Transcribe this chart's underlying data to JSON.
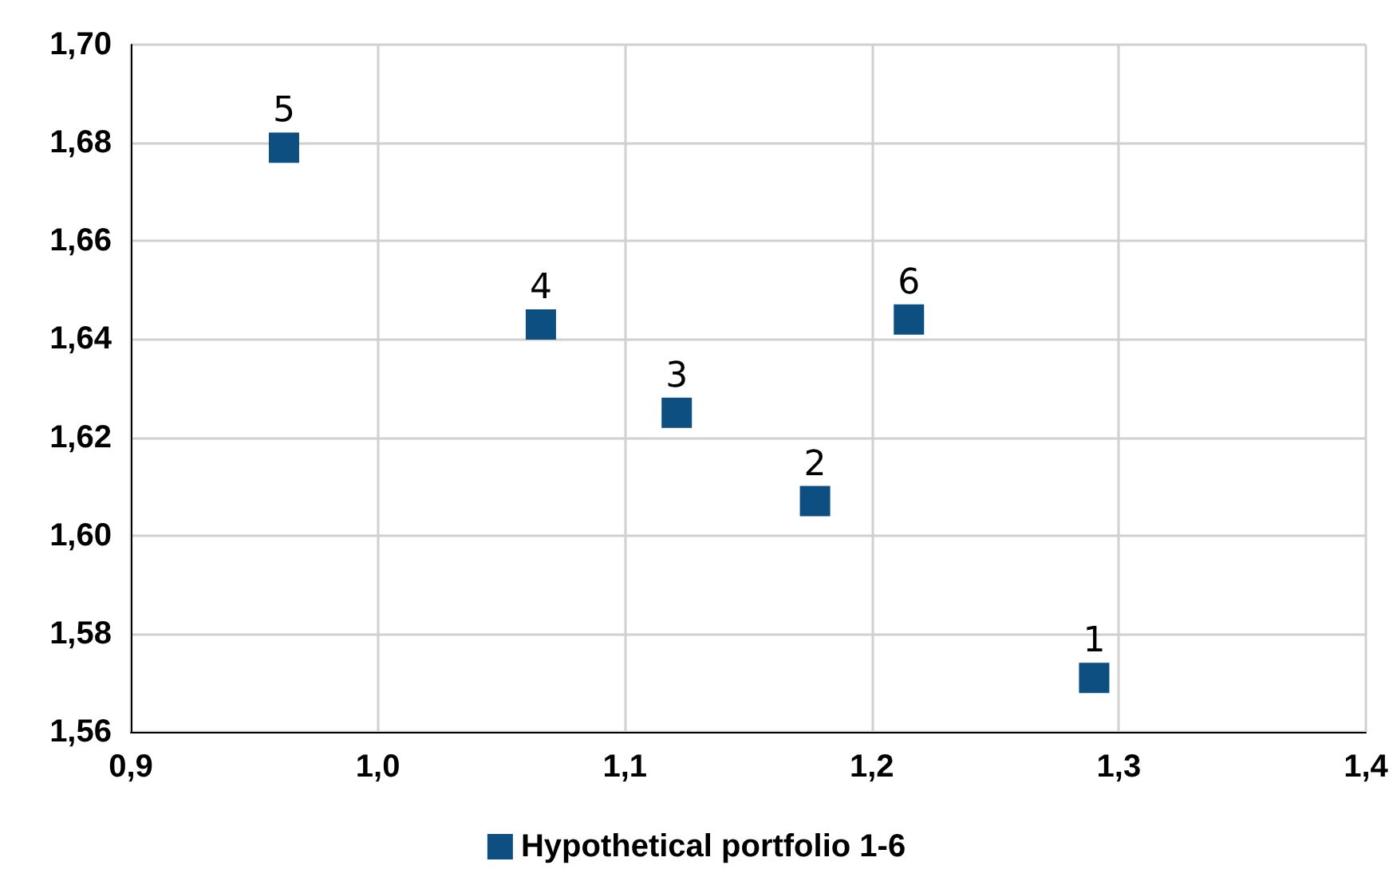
{
  "chart_data": {
    "type": "scatter",
    "series": [
      {
        "name": "Hypothetical portfolio 1-6",
        "color": "#0e4f82",
        "x": [
          1.29,
          1.177,
          1.121,
          1.066,
          0.962,
          1.215
        ],
        "values": [
          1.571,
          1.607,
          1.625,
          1.643,
          1.679,
          1.644
        ]
      }
    ],
    "annotations": [
      {
        "text": "1",
        "x": 1.29,
        "y": 1.571
      },
      {
        "text": "2",
        "x": 1.177,
        "y": 1.607
      },
      {
        "text": "3",
        "x": 1.121,
        "y": 1.625
      },
      {
        "text": "4",
        "x": 1.066,
        "y": 1.643
      },
      {
        "text": "5",
        "x": 0.962,
        "y": 1.679
      },
      {
        "text": "6",
        "x": 1.215,
        "y": 1.644
      }
    ],
    "xlim": [
      0.9,
      1.4
    ],
    "xticks": [
      {
        "value": 0.9,
        "label": "0,9"
      },
      {
        "value": 1.0,
        "label": "1,0"
      },
      {
        "value": 1.1,
        "label": "1,1"
      },
      {
        "value": 1.2,
        "label": "1,2"
      },
      {
        "value": 1.3,
        "label": "1,3"
      },
      {
        "value": 1.4,
        "label": "1,4"
      }
    ],
    "ylim": [
      1.56,
      1.7
    ],
    "yticks": [
      {
        "value": 1.56,
        "label": "1,56"
      },
      {
        "value": 1.58,
        "label": "1,58"
      },
      {
        "value": 1.6,
        "label": "1,60"
      },
      {
        "value": 1.62,
        "label": "1,62"
      },
      {
        "value": 1.64,
        "label": "1,64"
      },
      {
        "value": 1.66,
        "label": "1,66"
      },
      {
        "value": 1.68,
        "label": "1,68"
      },
      {
        "value": 1.7,
        "label": "1,70"
      }
    ],
    "grid": true,
    "legend": "bottom",
    "marker": "square"
  }
}
